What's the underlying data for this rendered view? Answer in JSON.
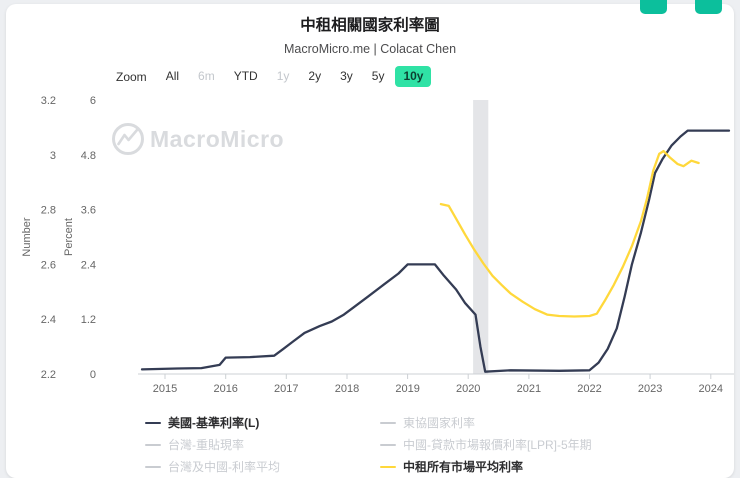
{
  "header": {
    "title": "中租相關國家利率圖",
    "subtitle": "MacroMicro.me | Colacat Chen",
    "top_actions": [
      {
        "color": "#0cbf9c"
      },
      {
        "color": "#0cbf9c"
      }
    ]
  },
  "toolbar": {
    "zoom_label": "Zoom",
    "active_bg": "#2fe2a5",
    "buttons": [
      {
        "label": "All",
        "state": "normal"
      },
      {
        "label": "6m",
        "state": "disabled"
      },
      {
        "label": "YTD",
        "state": "normal"
      },
      {
        "label": "1y",
        "state": "disabled"
      },
      {
        "label": "2y",
        "state": "normal"
      },
      {
        "label": "3y",
        "state": "normal"
      },
      {
        "label": "5y",
        "state": "normal"
      },
      {
        "label": "10y",
        "state": "active"
      }
    ]
  },
  "watermark": {
    "text": "MacroMicro"
  },
  "chart_data": {
    "type": "line",
    "title": "中租相關國家利率圖",
    "x_range": [
      2014.62,
      2024.35
    ],
    "x_ticks": [
      2015,
      2016,
      2017,
      2018,
      2019,
      2020,
      2021,
      2022,
      2023,
      2024
    ],
    "grid": false,
    "legend_position": "bottom",
    "axes": [
      {
        "label": "Number",
        "range": [
          2.2,
          3.2
        ],
        "ticks": [
          3.2,
          3,
          2.8,
          2.6,
          2.4,
          2.2
        ]
      },
      {
        "label": "Percent",
        "range": [
          0,
          6
        ],
        "ticks": [
          6,
          4.8,
          3.6,
          2.4,
          1.2,
          0
        ]
      }
    ],
    "plot_band": {
      "x0": 2020.08,
      "x1": 2020.33,
      "color": "#e4e5e8"
    },
    "series": [
      {
        "name": "美國-基準利率(L)",
        "axis": "Percent",
        "color": "#343c54",
        "points": [
          [
            2014.62,
            0.1
          ],
          [
            2015.2,
            0.12
          ],
          [
            2015.6,
            0.13
          ],
          [
            2015.9,
            0.2
          ],
          [
            2016.0,
            0.36
          ],
          [
            2016.4,
            0.37
          ],
          [
            2016.8,
            0.4
          ],
          [
            2016.95,
            0.55
          ],
          [
            2017.1,
            0.7
          ],
          [
            2017.3,
            0.9
          ],
          [
            2017.55,
            1.05
          ],
          [
            2017.75,
            1.15
          ],
          [
            2017.95,
            1.3
          ],
          [
            2018.1,
            1.45
          ],
          [
            2018.35,
            1.7
          ],
          [
            2018.6,
            1.95
          ],
          [
            2018.85,
            2.2
          ],
          [
            2019.0,
            2.4
          ],
          [
            2019.45,
            2.4
          ],
          [
            2019.6,
            2.15
          ],
          [
            2019.8,
            1.85
          ],
          [
            2019.95,
            1.55
          ],
          [
            2020.12,
            1.3
          ],
          [
            2020.2,
            0.6
          ],
          [
            2020.28,
            0.05
          ],
          [
            2020.7,
            0.08
          ],
          [
            2021.5,
            0.07
          ],
          [
            2022.0,
            0.08
          ],
          [
            2022.15,
            0.25
          ],
          [
            2022.3,
            0.55
          ],
          [
            2022.45,
            1.0
          ],
          [
            2022.58,
            1.7
          ],
          [
            2022.7,
            2.4
          ],
          [
            2022.85,
            3.1
          ],
          [
            2022.98,
            3.8
          ],
          [
            2023.08,
            4.4
          ],
          [
            2023.2,
            4.7
          ],
          [
            2023.35,
            5.0
          ],
          [
            2023.5,
            5.2
          ],
          [
            2023.62,
            5.33
          ],
          [
            2024.3,
            5.33
          ]
        ]
      },
      {
        "name": "中租所有市場平均利率",
        "axis": "Percent",
        "color": "#ffd83b",
        "points": [
          [
            2019.55,
            3.72
          ],
          [
            2019.68,
            3.68
          ],
          [
            2019.8,
            3.4
          ],
          [
            2019.95,
            3.05
          ],
          [
            2020.1,
            2.72
          ],
          [
            2020.25,
            2.42
          ],
          [
            2020.4,
            2.15
          ],
          [
            2020.55,
            1.95
          ],
          [
            2020.7,
            1.76
          ],
          [
            2020.9,
            1.58
          ],
          [
            2021.1,
            1.42
          ],
          [
            2021.3,
            1.3
          ],
          [
            2021.5,
            1.27
          ],
          [
            2021.75,
            1.26
          ],
          [
            2022.0,
            1.27
          ],
          [
            2022.12,
            1.32
          ],
          [
            2022.25,
            1.6
          ],
          [
            2022.4,
            1.95
          ],
          [
            2022.55,
            2.35
          ],
          [
            2022.7,
            2.8
          ],
          [
            2022.85,
            3.35
          ],
          [
            2022.95,
            3.85
          ],
          [
            2023.05,
            4.45
          ],
          [
            2023.15,
            4.82
          ],
          [
            2023.22,
            4.88
          ],
          [
            2023.32,
            4.75
          ],
          [
            2023.45,
            4.6
          ],
          [
            2023.55,
            4.55
          ],
          [
            2023.68,
            4.67
          ],
          [
            2023.8,
            4.62
          ]
        ]
      }
    ]
  },
  "legend": {
    "columns": [
      [
        {
          "label": "美國-基準利率(L)",
          "color": "#343c54",
          "active": true
        },
        {
          "label": "台灣-重貼現率",
          "color": "#c9ccd1",
          "active": false
        },
        {
          "label": "台灣及中國-利率平均",
          "color": "#c9ccd1",
          "active": false
        }
      ],
      [
        {
          "label": "東協國家利率",
          "color": "#c9ccd1",
          "active": false
        },
        {
          "label": "中國-貸款市場報價利率[LPR]-5年期",
          "color": "#c9ccd1",
          "active": false
        },
        {
          "label": "中租所有市場平均利率",
          "color": "#ffd83b",
          "active": true
        }
      ]
    ]
  }
}
